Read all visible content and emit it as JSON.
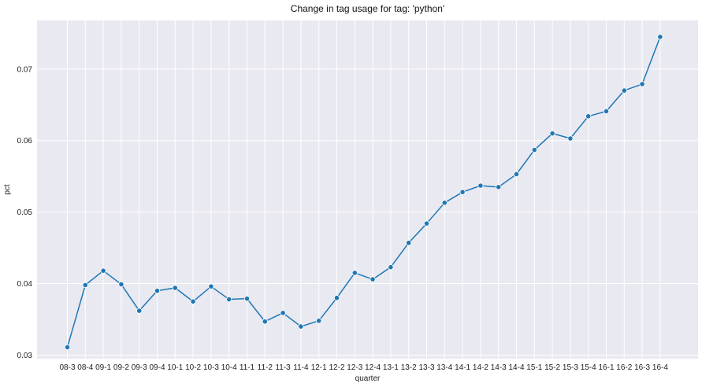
{
  "chart_data": {
    "type": "line",
    "title": "Change in tag usage for tag: 'python'",
    "xlabel": "quarter",
    "ylabel": "pct",
    "categories": [
      "08-3",
      "08-4",
      "09-1",
      "09-2",
      "09-3",
      "09-4",
      "10-1",
      "10-2",
      "10-3",
      "10-4",
      "11-1",
      "11-2",
      "11-3",
      "11-4",
      "12-1",
      "12-2",
      "12-3",
      "12-4",
      "13-1",
      "13-2",
      "13-3",
      "13-4",
      "14-1",
      "14-2",
      "14-3",
      "14-4",
      "15-1",
      "15-2",
      "15-3",
      "15-4",
      "16-1",
      "16-2",
      "16-3",
      "16-4"
    ],
    "series": [
      {
        "values": [
          0.0311,
          0.0398,
          0.0418,
          0.0399,
          0.0362,
          0.039,
          0.0394,
          0.0375,
          0.0396,
          0.0378,
          0.0379,
          0.0347,
          0.0359,
          0.034,
          0.0348,
          0.038,
          0.0415,
          0.0406,
          0.0423,
          0.0457,
          0.0484,
          0.0513,
          0.0528,
          0.0537,
          0.0535,
          0.0553,
          0.0587,
          0.061,
          0.0603,
          0.0634,
          0.0641,
          0.067,
          0.0679,
          0.0745
        ],
        "color": "#1f77b4"
      }
    ],
    "yticks": [
      0.03,
      0.04,
      0.05,
      0.06,
      0.07
    ],
    "ytick_labels": [
      "0.03",
      "0.04",
      "0.05",
      "0.06",
      "0.07"
    ],
    "ylim": [
      0.0295,
      0.0768
    ],
    "grid": true,
    "background": "#e9e9f1",
    "grid_color": "#ffffff",
    "marker": "circle"
  }
}
